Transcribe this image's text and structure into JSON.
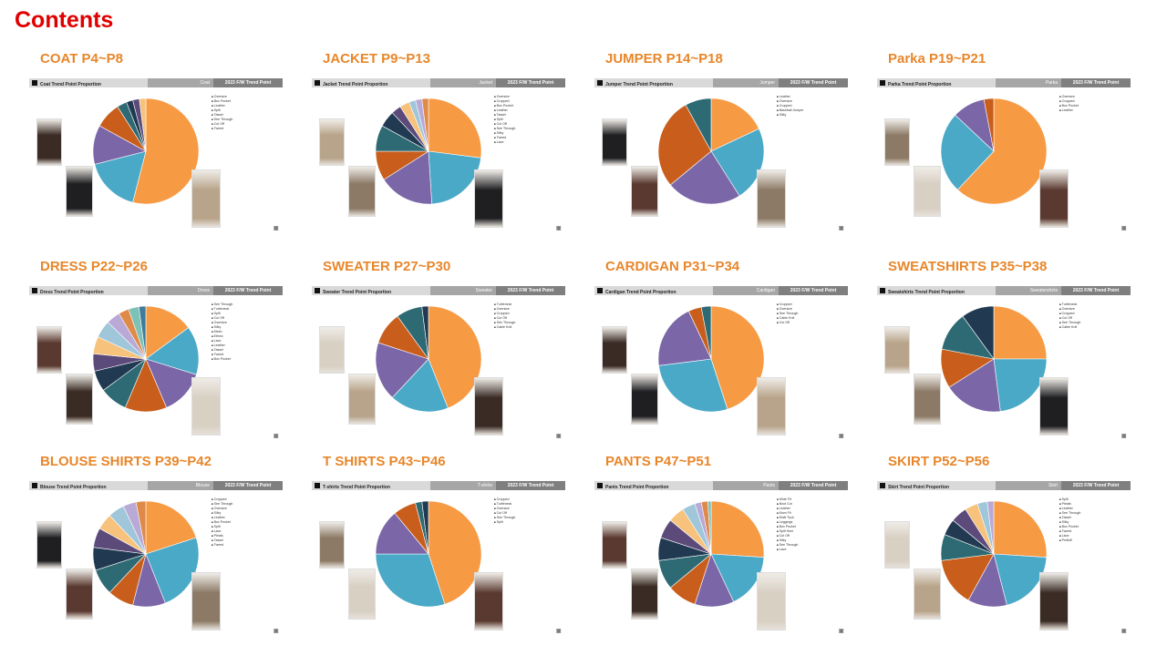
{
  "page_title": "Contents",
  "colors": [
    "#f79a44",
    "#4ba9c8",
    "#7b67a8",
    "#c95e1c",
    "#2e6a73",
    "#213a52",
    "#5b4a7a",
    "#f7c27c",
    "#9fc6d9",
    "#b9a9d6",
    "#e08a4a",
    "#7dc1b7",
    "#3f7b9a",
    "#d18b5a"
  ],
  "sections": [
    {
      "title": "COAT P4~P8",
      "header": "Coat Trend Point Proportion",
      "category": "Coat",
      "season": "2023 F/W Trend Point",
      "legend": [
        "Oversize",
        "Box Pocket",
        "Leather",
        "Split",
        "Tassel",
        "See Through",
        "Cut Off",
        "Tweed"
      ]
    },
    {
      "title": "JACKET P9~P13",
      "header": "Jacket Trend Point Proportion",
      "category": "Jacket",
      "season": "2023 F/W Trend Point",
      "legend": [
        "Oversize",
        "Cropped",
        "Box Pocket",
        "Leather",
        "Tassel",
        "Split",
        "Cut Off",
        "See Through",
        "Silky",
        "Tweed",
        "Lace"
      ]
    },
    {
      "title": "JUMPER P14~P18",
      "header": "Jumper Trend Point Proportion",
      "category": "Jumper",
      "season": "2023 F/W Trend Point",
      "legend": [
        "Leather",
        "Oversize",
        "Cropped",
        "Baseball Jumper",
        "Silky"
      ]
    },
    {
      "title": "Parka P19~P21",
      "header": "Parka Trend Point Proportion",
      "category": "Parka",
      "season": "2023 F/W Trend Point",
      "legend": [
        "Oversize",
        "Cropped",
        "Box Pocket",
        "Leather"
      ]
    },
    {
      "title": "DRESS P22~P26",
      "header": "Dress Trend Point Proportion",
      "category": "Dress",
      "season": "2023 F/W Trend Point",
      "legend": [
        "See Through",
        "Turtleneck",
        "Split",
        "Cut Off",
        "Oversize",
        "Silky",
        "Mesh",
        "Ethnic",
        "Lace",
        "Leather",
        "Tassel",
        "Tweed",
        "Box Pocket"
      ]
    },
    {
      "title": "SWEATER P27~P30",
      "header": "Sweater Trend Point Proportion",
      "category": "Sweater",
      "season": "2023 F/W Trend Point",
      "legend": [
        "Turtleneck",
        "Oversize",
        "Cropped",
        "Cut Off",
        "See Through",
        "Cable Knit"
      ]
    },
    {
      "title": "CARDIGAN P31~P34",
      "header": "Cardigan Trend Point Proportion",
      "category": "Cardigan",
      "season": "2023 F/W Trend Point",
      "legend": [
        "Cropped",
        "Oversize",
        "See Through",
        "Cable Knit",
        "Cut Off"
      ]
    },
    {
      "title": "SWEATSHIRTS P35~P38",
      "header": "Sweatshirts Trend Point Proportion",
      "category": "Sweatershirts",
      "season": "2023 F/W Trend Point",
      "legend": [
        "Turtleneck",
        "Oversize",
        "Cropped",
        "Cut Off",
        "See Through",
        "Cable Knit"
      ]
    },
    {
      "title": "BLOUSE SHIRTS P39~P42",
      "header": "Blouse Trend Point Proportion",
      "category": "Blouse",
      "season": "2023 F/W Trend Point",
      "legend": [
        "Cropped",
        "See Through",
        "Oversize",
        "Silky",
        "Leather",
        "Box Pocket",
        "Split",
        "Lace",
        "Pleats",
        "Tassel",
        "Tweed"
      ]
    },
    {
      "title": "T SHIRTS P43~P46",
      "header": "T-shirts Trend Point Proportion",
      "category": "T-shirts",
      "season": "2023 F/W Trend Point",
      "legend": [
        "Cropped",
        "Turtleneck",
        "Oversize",
        "Cut Off",
        "See Through",
        "Split"
      ]
    },
    {
      "title": "PANTS P47~P51",
      "header": "Pants Trend Point Proportion",
      "category": "Pants",
      "season": "2023 F/W Trend Point",
      "legend": [
        "Wide Fit",
        "Boot Cut",
        "Leather",
        "Mom Fit",
        "Multi Tuck",
        "Leggings",
        "Box Pocket",
        "Split Hem",
        "Cut Off",
        "Silky",
        "See Through",
        "Lace"
      ]
    },
    {
      "title": "SKIRT P52~P56",
      "header": "Skirt Trend Point Proportion",
      "category": "Skirt",
      "season": "2023 F/W Trend Point",
      "legend": [
        "Split",
        "Pleats",
        "Leather",
        "See Through",
        "Tassel",
        "Silky",
        "Box Pocket",
        "Tweed",
        "Lace",
        "Pinfluff"
      ]
    }
  ],
  "chart_data": [
    {
      "type": "pie",
      "title": "Coat Trend Point Proportion",
      "values": [
        54,
        17,
        12,
        8,
        3,
        2,
        2,
        2
      ]
    },
    {
      "type": "pie",
      "title": "Jacket Trend Point Proportion",
      "values": [
        27,
        22,
        17,
        9,
        8,
        5,
        3,
        3,
        2,
        2,
        2
      ]
    },
    {
      "type": "pie",
      "title": "Jumper Trend Point Proportion",
      "values": [
        18,
        23,
        23,
        28,
        8
      ]
    },
    {
      "type": "pie",
      "title": "Parka Trend Point Proportion",
      "values": [
        62,
        25,
        10,
        3
      ]
    },
    {
      "type": "pie",
      "title": "Dress Trend Point Proportion",
      "values": [
        14,
        14,
        13,
        12,
        8,
        6,
        5,
        5,
        5,
        4,
        3,
        3,
        2
      ]
    },
    {
      "type": "pie",
      "title": "Sweater Trend Point Proportion",
      "values": [
        44,
        18,
        18,
        10,
        8,
        2
      ]
    },
    {
      "type": "pie",
      "title": "Cardigan Trend Point Proportion",
      "values": [
        45,
        28,
        20,
        4,
        3
      ]
    },
    {
      "type": "pie",
      "title": "Sweatshirts Trend Point Proportion",
      "values": [
        25,
        23,
        18,
        12,
        12,
        10
      ]
    },
    {
      "type": "pie",
      "title": "Blouse Trend Point Proportion",
      "values": [
        20,
        24,
        10,
        8,
        8,
        7,
        6,
        5,
        5,
        4,
        3
      ]
    },
    {
      "type": "pie",
      "title": "T-shirts Trend Point Proportion",
      "values": [
        45,
        30,
        14,
        7,
        2,
        2
      ]
    },
    {
      "type": "pie",
      "title": "Pants Trend Point Proportion",
      "values": [
        26,
        17,
        12,
        9,
        9,
        7,
        6,
        5,
        4,
        2,
        2,
        1
      ]
    },
    {
      "type": "pie",
      "title": "Skirt Trend Point Proportion",
      "values": [
        26,
        20,
        12,
        15,
        8,
        5,
        5,
        4,
        3,
        2
      ]
    }
  ]
}
